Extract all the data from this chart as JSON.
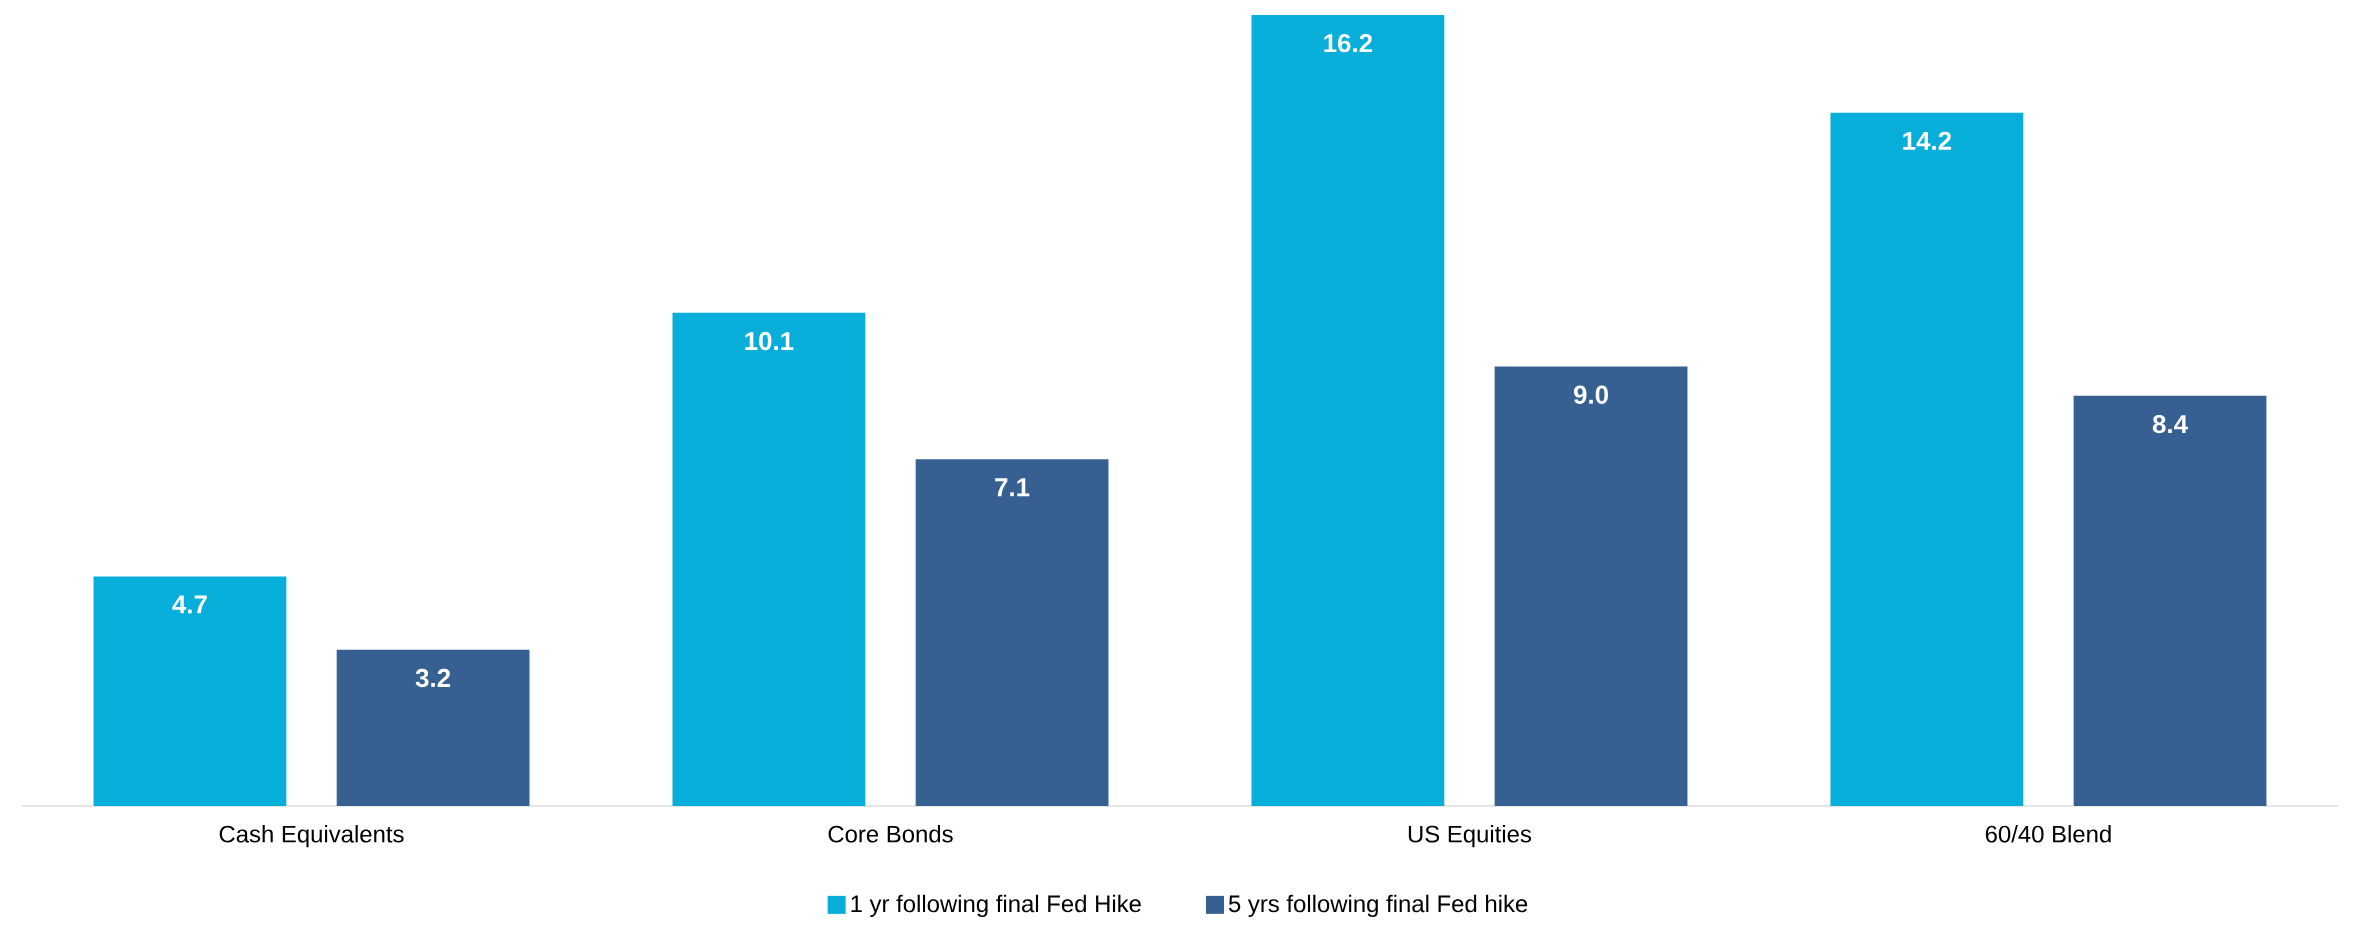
{
  "chart_data": {
    "type": "bar",
    "categories": [
      "Cash Equivalents",
      "Core Bonds",
      "US Equities",
      "60/40 Blend"
    ],
    "series": [
      {
        "name": "1 yr following final Fed Hike",
        "color": "#06aed9",
        "values": [
          4.7,
          10.1,
          16.2,
          14.2
        ]
      },
      {
        "name": "5 yrs following final Fed hike",
        "color": "#366092",
        "values": [
          3.2,
          7.1,
          9.0,
          8.4
        ],
        "value_labels": [
          "3.2",
          "7.1",
          "9.0",
          "8.4"
        ]
      }
    ],
    "data_labels": true,
    "legend": "bottom"
  }
}
